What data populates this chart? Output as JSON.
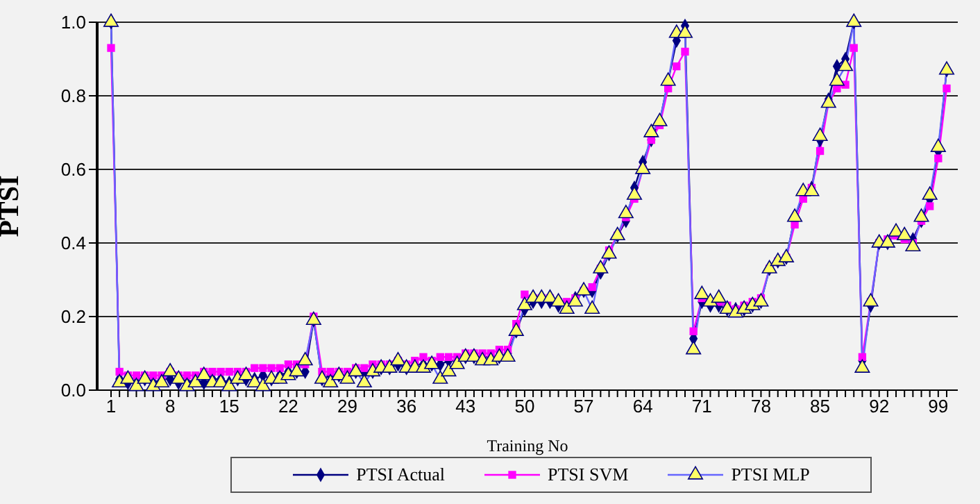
{
  "chart_data": {
    "type": "line",
    "xlabel": "Training No",
    "ylabel": "PTSI",
    "categories": [
      "1",
      null,
      null,
      null,
      null,
      null,
      null,
      "8",
      null,
      null,
      null,
      null,
      null,
      null,
      "15",
      null,
      null,
      null,
      null,
      null,
      null,
      "22",
      null,
      null,
      null,
      null,
      null,
      null,
      "29",
      null,
      null,
      null,
      null,
      null,
      null,
      "36",
      null,
      null,
      null,
      null,
      null,
      null,
      "43",
      null,
      null,
      null,
      null,
      null,
      null,
      "50",
      null,
      null,
      null,
      null,
      null,
      null,
      "57",
      null,
      null,
      null,
      null,
      null,
      null,
      "64",
      null,
      null,
      null,
      null,
      null,
      null,
      "71",
      null,
      null,
      null,
      null,
      null,
      null,
      "78",
      null,
      null,
      null,
      null,
      null,
      null,
      "85",
      null,
      null,
      null,
      null,
      null,
      null,
      "92",
      null,
      null,
      null,
      null,
      null,
      null,
      "99",
      null
    ],
    "series": [
      {
        "name": "PTSI Actual",
        "color": "#000080",
        "marker": "diamond",
        "values": [
          1.0,
          0.03,
          0.02,
          0.02,
          0.03,
          0.02,
          0.03,
          0.03,
          0.02,
          0.02,
          0.03,
          0.02,
          0.03,
          0.03,
          0.02,
          0.03,
          0.03,
          0.03,
          0.04,
          0.03,
          0.04,
          0.05,
          0.05,
          0.05,
          0.19,
          0.03,
          0.04,
          0.04,
          0.04,
          0.05,
          0.05,
          0.05,
          0.06,
          0.06,
          0.07,
          0.06,
          0.07,
          0.07,
          0.07,
          0.07,
          0.08,
          0.08,
          0.09,
          0.09,
          0.09,
          0.09,
          0.09,
          0.1,
          0.16,
          0.22,
          0.24,
          0.24,
          0.24,
          0.23,
          0.23,
          0.25,
          0.27,
          0.27,
          0.32,
          0.37,
          0.42,
          0.46,
          0.55,
          0.62,
          0.68,
          0.73,
          0.84,
          0.95,
          0.99,
          0.14,
          0.24,
          0.23,
          0.23,
          0.22,
          0.22,
          0.22,
          0.23,
          0.24,
          0.33,
          0.35,
          0.36,
          0.47,
          0.53,
          0.55,
          0.68,
          0.79,
          0.88,
          0.9,
          1.0,
          0.08,
          0.23,
          0.4,
          0.4,
          0.43,
          0.42,
          0.41,
          0.46,
          0.52,
          0.65,
          0.87
        ]
      },
      {
        "name": "PTSI SVM",
        "color": "#ff00ff",
        "marker": "square",
        "values": [
          0.93,
          0.05,
          0.04,
          0.04,
          0.04,
          0.04,
          0.04,
          0.05,
          0.04,
          0.04,
          0.04,
          0.05,
          0.05,
          0.05,
          0.05,
          0.05,
          0.05,
          0.06,
          0.06,
          0.06,
          0.06,
          0.07,
          0.07,
          0.07,
          0.2,
          0.05,
          0.05,
          0.05,
          0.05,
          0.06,
          0.06,
          0.07,
          0.07,
          0.07,
          0.08,
          0.07,
          0.08,
          0.09,
          0.08,
          0.09,
          0.09,
          0.09,
          0.1,
          0.1,
          0.1,
          0.1,
          0.11,
          0.11,
          0.18,
          0.26,
          0.25,
          0.25,
          0.25,
          0.24,
          0.24,
          0.25,
          0.27,
          0.28,
          0.33,
          0.38,
          0.42,
          0.47,
          0.52,
          0.6,
          0.68,
          0.72,
          0.82,
          0.88,
          0.92,
          0.16,
          0.25,
          0.24,
          0.24,
          0.23,
          0.22,
          0.23,
          0.24,
          0.25,
          0.33,
          0.35,
          0.36,
          0.45,
          0.52,
          0.55,
          0.65,
          0.78,
          0.82,
          0.83,
          0.93,
          0.09,
          0.24,
          0.4,
          0.41,
          0.42,
          0.41,
          0.4,
          0.46,
          0.5,
          0.63,
          0.82
        ]
      },
      {
        "name": "PTSI MLP",
        "color": "#6666ff",
        "marker": "triangle",
        "values": [
          1.0,
          0.02,
          0.03,
          0.01,
          0.03,
          0.01,
          0.02,
          0.05,
          0.03,
          0.01,
          0.02,
          0.04,
          0.02,
          0.02,
          0.01,
          0.03,
          0.04,
          0.02,
          0.01,
          0.03,
          0.03,
          0.04,
          0.05,
          0.08,
          0.19,
          0.03,
          0.02,
          0.04,
          0.03,
          0.05,
          0.02,
          0.05,
          0.06,
          0.06,
          0.08,
          0.06,
          0.06,
          0.06,
          0.07,
          0.03,
          0.05,
          0.07,
          0.09,
          0.09,
          0.08,
          0.08,
          0.09,
          0.09,
          0.16,
          0.23,
          0.25,
          0.25,
          0.25,
          0.24,
          0.22,
          0.24,
          0.27,
          0.22,
          0.33,
          0.37,
          0.42,
          0.48,
          0.53,
          0.6,
          0.7,
          0.73,
          0.84,
          0.97,
          0.97,
          0.11,
          0.26,
          0.24,
          0.25,
          0.22,
          0.21,
          0.22,
          0.23,
          0.24,
          0.33,
          0.35,
          0.36,
          0.47,
          0.54,
          0.54,
          0.69,
          0.78,
          0.84,
          0.88,
          1.0,
          0.06,
          0.24,
          0.4,
          0.4,
          0.43,
          0.42,
          0.39,
          0.47,
          0.53,
          0.66,
          0.87
        ]
      }
    ],
    "ylim": [
      0,
      1
    ],
    "yticks": [
      {
        "value": 0,
        "label": "0.0"
      },
      {
        "value": 0.2,
        "label": "0.2"
      },
      {
        "value": 0.4,
        "label": "0.4"
      },
      {
        "value": 0.6,
        "label": "0.6"
      },
      {
        "value": 0.8,
        "label": "0.8"
      },
      {
        "value": 1,
        "label": "1.0"
      }
    ],
    "grid": "y",
    "legend": "bottom",
    "line_style": "solid"
  }
}
